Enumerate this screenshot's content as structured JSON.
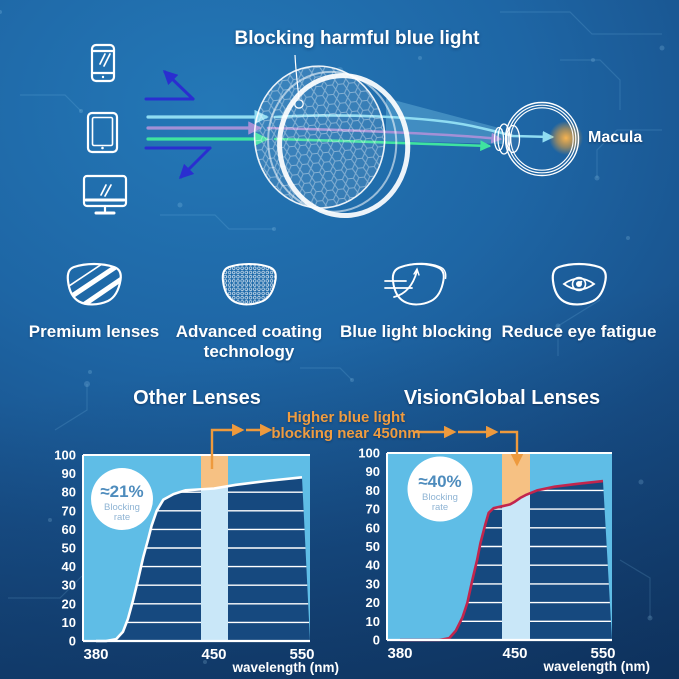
{
  "top": {
    "title": "Blocking harmful blue light",
    "macula": "Macula",
    "devices": [
      "smartphone-icon",
      "tablet-icon",
      "monitor-icon"
    ],
    "rays": [
      "blue-reflected",
      "cyan-ray",
      "violet-ray",
      "green-ray"
    ]
  },
  "features": [
    {
      "icon": "striped-lens-icon",
      "label": "Premium lenses"
    },
    {
      "icon": "coated-lens-icon",
      "label": "Advanced coating technology"
    },
    {
      "icon": "blocking-lens-icon",
      "label": "Blue light blocking"
    },
    {
      "icon": "eye-lens-icon",
      "label": "Reduce eye fatigue"
    }
  ],
  "charts_annotation": {
    "line1": "Higher blue light",
    "line2": "blocking near 450nm",
    "color": "#ef9c40"
  },
  "chart_data": [
    {
      "type": "area",
      "title": "Other Lenses",
      "xlabel": "wavelength (nm)",
      "x_ticks": [
        380,
        450,
        550
      ],
      "y_ticks": [
        0,
        10,
        20,
        30,
        40,
        50,
        60,
        70,
        80,
        90,
        100
      ],
      "ylim": [
        0,
        100
      ],
      "grid": true,
      "band_nm": [
        442,
        459
      ],
      "badge": {
        "value": "≈21%",
        "label_lines": [
          "Blocking",
          "rate"
        ]
      },
      "series": [
        {
          "name": "blocking rate",
          "color": "#ffffff",
          "points": [
            [
              380,
              0
            ],
            [
              386,
              0
            ],
            [
              392,
              1
            ],
            [
              396,
              5
            ],
            [
              399,
              12
            ],
            [
              402,
              22
            ],
            [
              405,
              33
            ],
            [
              408,
              45
            ],
            [
              411,
              55
            ],
            [
              413,
              62
            ],
            [
              416,
              70
            ],
            [
              420,
              76
            ],
            [
              426,
              79
            ],
            [
              433,
              81
            ],
            [
              450,
              82
            ],
            [
              475,
              84
            ],
            [
              510,
              86
            ],
            [
              550,
              88
            ]
          ]
        }
      ],
      "colors": {
        "above_fill": "#5fbde6",
        "below_fill": "#16497f",
        "band": "#c9e7f8",
        "band_highlight": "#f6c183"
      }
    },
    {
      "type": "area",
      "title": "VisionGlobal Lenses",
      "xlabel": "wavelength (nm)",
      "x_ticks": [
        380,
        450,
        550
      ],
      "y_ticks": [
        0,
        10,
        20,
        30,
        40,
        50,
        60,
        70,
        80,
        90,
        100
      ],
      "ylim": [
        0,
        100
      ],
      "grid": true,
      "band_nm": [
        443,
        460
      ],
      "badge": {
        "value": "≈40%",
        "label_lines": [
          "Blocking",
          "rate"
        ]
      },
      "series": [
        {
          "name": "blocking rate",
          "color": "#c2254d",
          "points": [
            [
              380,
              0
            ],
            [
              404,
              0
            ],
            [
              410,
              1
            ],
            [
              414,
              5
            ],
            [
              418,
              12
            ],
            [
              421,
              20
            ],
            [
              424,
              32
            ],
            [
              427,
              43
            ],
            [
              429,
              52
            ],
            [
              432,
              62
            ],
            [
              434,
              68
            ],
            [
              437,
              70.5
            ],
            [
              442,
              71.5
            ],
            [
              447,
              72.5
            ],
            [
              450,
              74
            ],
            [
              456,
              76
            ],
            [
              462,
              77.5
            ],
            [
              475,
              80
            ],
            [
              495,
              82
            ],
            [
              520,
              83.5
            ],
            [
              550,
              85
            ]
          ]
        }
      ],
      "colors": {
        "above_fill": "#5fbde6",
        "below_fill": "#16497f",
        "band": "#c9e7f8",
        "band_highlight": "#f6c183"
      }
    }
  ]
}
